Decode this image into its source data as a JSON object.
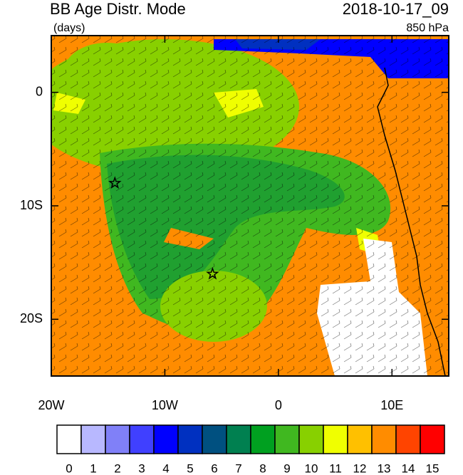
{
  "title": "BB Age Distr. Mode",
  "units": "(days)",
  "time": "2018-10-17_09",
  "level": "850 hPa",
  "map": {
    "xlim": [
      -20,
      15
    ],
    "ylim": [
      -25,
      5
    ],
    "xticks": [
      {
        "value": -20,
        "label": "20W"
      },
      {
        "value": -10,
        "label": "10W"
      },
      0,
      {
        "value": 10,
        "label": "10E"
      }
    ],
    "yticks": [
      0,
      {
        "value": -10,
        "label": "10S"
      },
      {
        "value": -20,
        "label": "20S"
      }
    ],
    "stars": [
      {
        "lon": -14.4,
        "lat": -8
      },
      {
        "lon": -5.8,
        "lat": -16
      }
    ]
  },
  "colorbar": {
    "colors": [
      "#ffffff",
      "#b8b8ff",
      "#8080f8",
      "#4040ff",
      "#0000ff",
      "#0030c0",
      "#005080",
      "#008050",
      "#00a020",
      "#40b820",
      "#88d000",
      "#f0ff00",
      "#ffc000",
      "#ff8c00",
      "#ff4400",
      "#ff0000"
    ],
    "labels": [
      0,
      1,
      2,
      3,
      4,
      5,
      6,
      7,
      8,
      9,
      10,
      11,
      12,
      13,
      14,
      15
    ]
  }
}
